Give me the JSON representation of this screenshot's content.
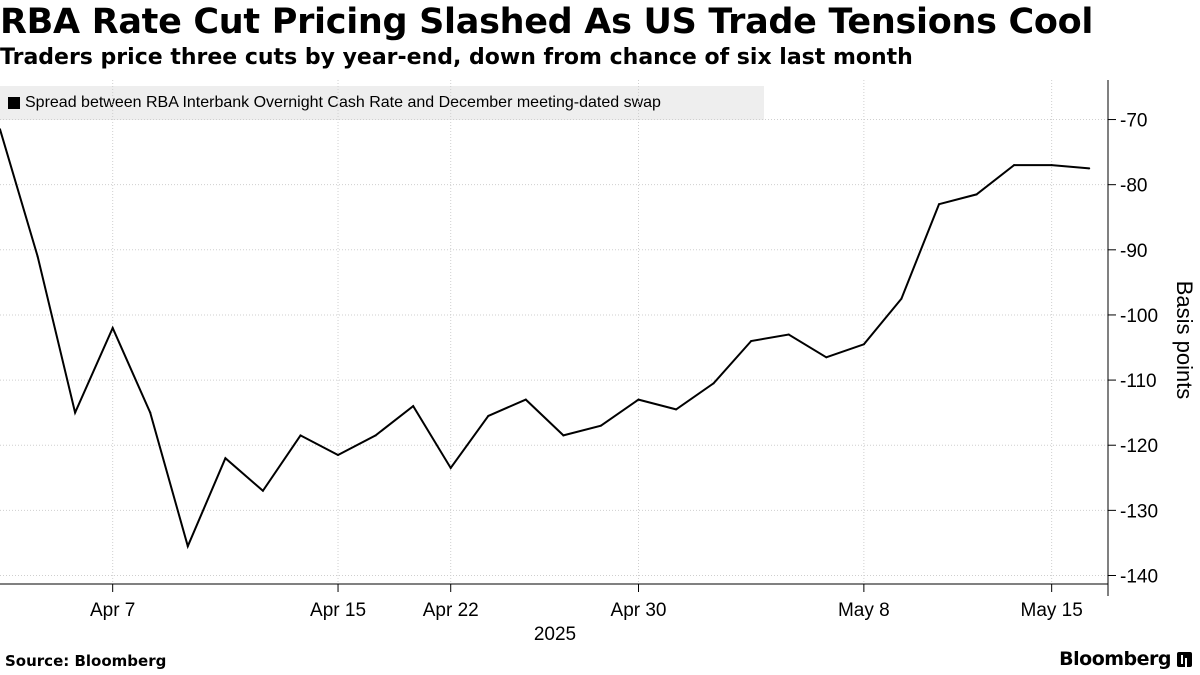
{
  "chart_data": {
    "type": "line",
    "title": "RBA Rate Cut Pricing Slashed As US Trade Tensions Cool",
    "subtitle": "Traders price three cuts by year-end, down from chance of six last month",
    "series": [
      {
        "name": "Spread between RBA Interbank Overnight Cash Rate and December meeting-dated swap",
        "color": "#000000",
        "points": [
          {
            "day": 2,
            "value": -71.5
          },
          {
            "day": 3,
            "value": -91
          },
          {
            "day": 4,
            "value": -115
          },
          {
            "day": 5,
            "value": -102
          },
          {
            "day": 6,
            "value": -115
          },
          {
            "day": 7,
            "value": -135.5
          },
          {
            "day": 8,
            "value": -122
          },
          {
            "day": 9,
            "value": -127
          },
          {
            "day": 10,
            "value": -118.5
          },
          {
            "day": 11,
            "value": -121.5
          },
          {
            "day": 12,
            "value": -118.5
          },
          {
            "day": 13,
            "value": -114
          },
          {
            "day": 14,
            "value": -123.5
          },
          {
            "day": 15,
            "value": -115.5
          },
          {
            "day": 16,
            "value": -113
          },
          {
            "day": 17,
            "value": -118.5
          },
          {
            "day": 18,
            "value": -117
          },
          {
            "day": 19,
            "value": -113
          },
          {
            "day": 20,
            "value": -114.5
          },
          {
            "day": 21,
            "value": -110.5
          },
          {
            "day": 22,
            "value": -104
          },
          {
            "day": 23,
            "value": -103
          },
          {
            "day": 24,
            "value": -106.5
          },
          {
            "day": 25,
            "value": -104.5
          },
          {
            "day": 26,
            "value": -97.5
          },
          {
            "day": 27,
            "value": -83
          },
          {
            "day": 28,
            "value": -81.5
          },
          {
            "day": 29,
            "value": -77
          },
          {
            "day": 30,
            "value": -77
          },
          {
            "day": 31,
            "value": -77.5
          }
        ]
      }
    ],
    "x_ticks": [
      {
        "label": "Apr 7",
        "day": 5
      },
      {
        "label": "Apr 15",
        "day": 11
      },
      {
        "label": "Apr 22",
        "day": 14
      },
      {
        "label": "Apr 30",
        "day": 19
      },
      {
        "label": "May 8",
        "day": 25
      },
      {
        "label": "May 15",
        "day": 30
      }
    ],
    "x_range": [
      2,
      31.5
    ],
    "x_year_label": "2025",
    "y_ticks": [
      -70,
      -80,
      -90,
      -100,
      -110,
      -120,
      -130,
      -140
    ],
    "y_tick_labels": [
      "-70",
      "-80",
      "-90",
      "-100",
      "-110",
      "-120",
      "-130",
      "-140"
    ],
    "ylim": [
      -141,
      -67
    ],
    "ylabel": "Basis points",
    "xlabel": "",
    "grid": true,
    "legend_position": "top-left"
  },
  "source": "Source: Bloomberg",
  "brand": "Bloomberg"
}
